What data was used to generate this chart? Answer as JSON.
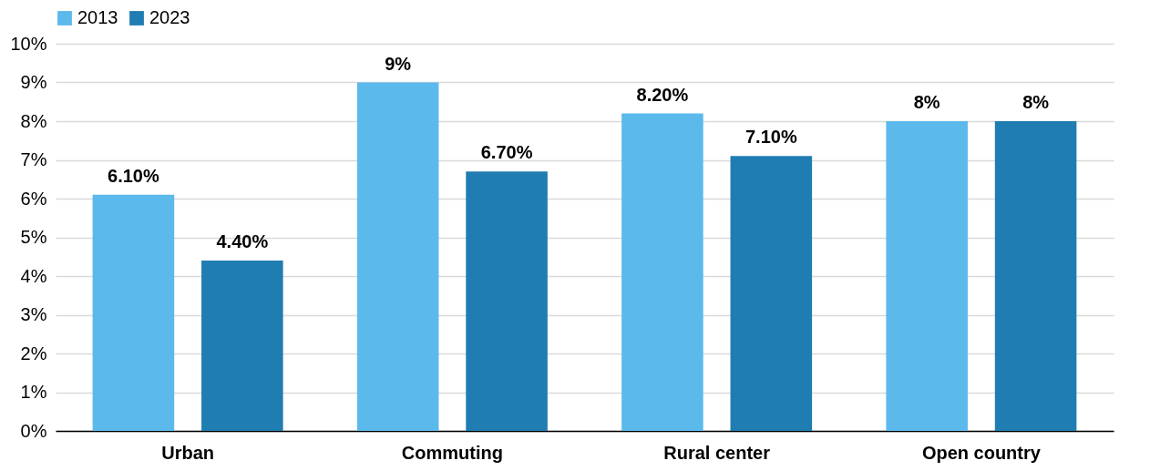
{
  "chart_data": {
    "type": "bar",
    "categories": [
      "Urban",
      "Commuting",
      "Rural center",
      "Open country"
    ],
    "series": [
      {
        "name": "2013",
        "color": "#5bb9ec",
        "values": [
          6.1,
          9,
          8.2,
          8
        ],
        "value_labels": [
          "6.10%",
          "9%",
          "8.20%",
          "8%"
        ]
      },
      {
        "name": "2023",
        "color": "#1f7db1",
        "values": [
          4.4,
          6.7,
          7.1,
          8
        ],
        "value_labels": [
          "4.40%",
          "6.70%",
          "7.10%",
          "8%"
        ]
      }
    ],
    "ylim": [
      0,
      10
    ],
    "yticks": [
      {
        "value": 0,
        "label": "0%"
      },
      {
        "value": 1,
        "label": "1%"
      },
      {
        "value": 2,
        "label": "2%"
      },
      {
        "value": 3,
        "label": "3%"
      },
      {
        "value": 4,
        "label": "4%"
      },
      {
        "value": 5,
        "label": "5%"
      },
      {
        "value": 6,
        "label": "6%"
      },
      {
        "value": 7,
        "label": "7%"
      },
      {
        "value": 8,
        "label": "8%"
      },
      {
        "value": 9,
        "label": "9%"
      },
      {
        "value": 10,
        "label": "10%"
      }
    ],
    "grid": "y",
    "legend": "top"
  }
}
